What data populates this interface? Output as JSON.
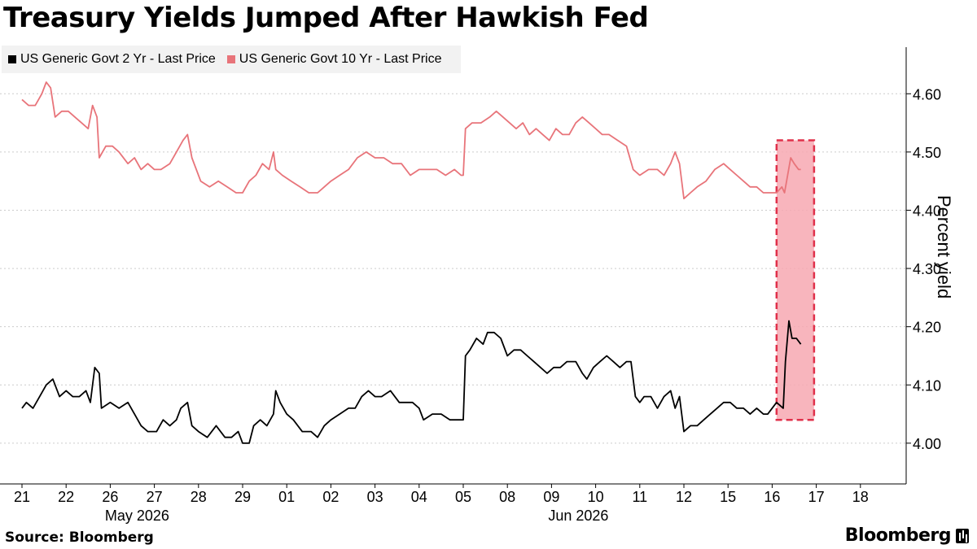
{
  "title": "Treasury Yields Jumped After Hawkish Fed",
  "source": "Source: Bloomberg",
  "brand": "Bloomberg",
  "colors": {
    "series_2yr": "#000000",
    "series_10yr": "#e8747a",
    "highlight_fill": "#f7a8b2",
    "highlight_border": "#e0304a",
    "gridline": "#cccccc",
    "legend_bg": "#f2f2f2"
  },
  "chart_data": {
    "type": "line",
    "title": "Treasury Yields Jumped After Hawkish Fed",
    "xlabel": "",
    "ylabel": "Percent yield",
    "ylim": [
      3.93,
      4.68
    ],
    "yticks": [
      "4.00",
      "4.10",
      "4.20",
      "4.30",
      "4.40",
      "4.50",
      "4.60"
    ],
    "grid": true,
    "legend_position": "top-left",
    "y_axis_side": "right",
    "categories": [
      "21",
      "22",
      "26",
      "27",
      "28",
      "29",
      "01",
      "02",
      "03",
      "04",
      "05",
      "08",
      "09",
      "10",
      "11",
      "12",
      "15",
      "16",
      "17",
      "18"
    ],
    "x_group_labels": [
      {
        "label": "May 2026",
        "at": "26"
      },
      {
        "label": "Jun 2026",
        "at": "09"
      }
    ],
    "series": [
      {
        "name": "US Generic Govt 2 Yr - Last Price",
        "points": [
          [
            0.0,
            4.06
          ],
          [
            0.1,
            4.07
          ],
          [
            0.25,
            4.06
          ],
          [
            0.4,
            4.08
          ],
          [
            0.55,
            4.1
          ],
          [
            0.7,
            4.11
          ],
          [
            0.85,
            4.08
          ],
          [
            1.0,
            4.09
          ],
          [
            1.15,
            4.08
          ],
          [
            1.3,
            4.08
          ],
          [
            1.45,
            4.09
          ],
          [
            1.55,
            4.07
          ],
          [
            1.65,
            4.13
          ],
          [
            1.75,
            4.12
          ],
          [
            1.8,
            4.06
          ],
          [
            2.0,
            4.07
          ],
          [
            2.2,
            4.06
          ],
          [
            2.4,
            4.07
          ],
          [
            2.55,
            4.05
          ],
          [
            2.7,
            4.03
          ],
          [
            2.85,
            4.02
          ],
          [
            3.05,
            4.02
          ],
          [
            3.2,
            4.04
          ],
          [
            3.35,
            4.03
          ],
          [
            3.5,
            4.04
          ],
          [
            3.6,
            4.06
          ],
          [
            3.75,
            4.07
          ],
          [
            3.85,
            4.03
          ],
          [
            4.0,
            4.02
          ],
          [
            4.2,
            4.01
          ],
          [
            4.4,
            4.03
          ],
          [
            4.6,
            4.01
          ],
          [
            4.75,
            4.01
          ],
          [
            4.9,
            4.02
          ],
          [
            5.0,
            4.0
          ],
          [
            5.15,
            4.0
          ],
          [
            5.25,
            4.03
          ],
          [
            5.4,
            4.04
          ],
          [
            5.55,
            4.03
          ],
          [
            5.7,
            4.05
          ],
          [
            5.75,
            4.09
          ],
          [
            5.85,
            4.07
          ],
          [
            6.0,
            4.05
          ],
          [
            6.15,
            4.04
          ],
          [
            6.35,
            4.02
          ],
          [
            6.55,
            4.02
          ],
          [
            6.7,
            4.01
          ],
          [
            6.85,
            4.03
          ],
          [
            7.0,
            4.04
          ],
          [
            7.2,
            4.05
          ],
          [
            7.4,
            4.06
          ],
          [
            7.55,
            4.06
          ],
          [
            7.7,
            4.08
          ],
          [
            7.85,
            4.09
          ],
          [
            8.0,
            4.08
          ],
          [
            8.15,
            4.08
          ],
          [
            8.35,
            4.09
          ],
          [
            8.55,
            4.07
          ],
          [
            8.7,
            4.07
          ],
          [
            8.85,
            4.07
          ],
          [
            9.0,
            4.06
          ],
          [
            9.1,
            4.04
          ],
          [
            9.3,
            4.05
          ],
          [
            9.5,
            4.05
          ],
          [
            9.7,
            4.04
          ],
          [
            9.85,
            4.04
          ],
          [
            10.0,
            4.04
          ],
          [
            10.05,
            4.15
          ],
          [
            10.15,
            4.16
          ],
          [
            10.3,
            4.18
          ],
          [
            10.45,
            4.17
          ],
          [
            10.55,
            4.19
          ],
          [
            10.7,
            4.19
          ],
          [
            10.85,
            4.18
          ],
          [
            11.0,
            4.15
          ],
          [
            11.15,
            4.16
          ],
          [
            11.3,
            4.16
          ],
          [
            11.45,
            4.15
          ],
          [
            11.6,
            4.14
          ],
          [
            11.75,
            4.13
          ],
          [
            11.9,
            4.12
          ],
          [
            12.05,
            4.13
          ],
          [
            12.2,
            4.13
          ],
          [
            12.35,
            4.14
          ],
          [
            12.55,
            4.14
          ],
          [
            12.7,
            4.12
          ],
          [
            12.8,
            4.11
          ],
          [
            12.95,
            4.13
          ],
          [
            13.1,
            4.14
          ],
          [
            13.25,
            4.15
          ],
          [
            13.4,
            4.14
          ],
          [
            13.55,
            4.13
          ],
          [
            13.7,
            4.14
          ],
          [
            13.8,
            4.14
          ],
          [
            13.9,
            4.08
          ],
          [
            14.0,
            4.07
          ],
          [
            14.1,
            4.08
          ],
          [
            14.25,
            4.08
          ],
          [
            14.4,
            4.06
          ],
          [
            14.55,
            4.08
          ],
          [
            14.7,
            4.09
          ],
          [
            14.8,
            4.06
          ],
          [
            14.9,
            4.08
          ],
          [
            15.0,
            4.02
          ],
          [
            15.15,
            4.03
          ],
          [
            15.3,
            4.03
          ],
          [
            15.45,
            4.04
          ],
          [
            15.6,
            4.05
          ],
          [
            15.75,
            4.06
          ],
          [
            15.9,
            4.07
          ],
          [
            16.05,
            4.07
          ],
          [
            16.2,
            4.06
          ],
          [
            16.35,
            4.06
          ],
          [
            16.5,
            4.05
          ],
          [
            16.65,
            4.06
          ],
          [
            16.8,
            4.05
          ],
          [
            16.9,
            4.05
          ],
          [
            17.0,
            4.06
          ],
          [
            17.1,
            4.07
          ],
          [
            17.25,
            4.06
          ],
          [
            17.3,
            4.14
          ],
          [
            17.38,
            4.21
          ],
          [
            17.45,
            4.18
          ],
          [
            17.55,
            4.18
          ],
          [
            17.65,
            4.17
          ]
        ]
      },
      {
        "name": "US Generic Govt 10 Yr - Last Price",
        "points": [
          [
            0.0,
            4.59
          ],
          [
            0.15,
            4.58
          ],
          [
            0.3,
            4.58
          ],
          [
            0.45,
            4.6
          ],
          [
            0.55,
            4.62
          ],
          [
            0.65,
            4.61
          ],
          [
            0.75,
            4.56
          ],
          [
            0.9,
            4.57
          ],
          [
            1.05,
            4.57
          ],
          [
            1.2,
            4.56
          ],
          [
            1.35,
            4.55
          ],
          [
            1.5,
            4.54
          ],
          [
            1.6,
            4.58
          ],
          [
            1.7,
            4.56
          ],
          [
            1.75,
            4.49
          ],
          [
            1.9,
            4.51
          ],
          [
            2.05,
            4.51
          ],
          [
            2.2,
            4.5
          ],
          [
            2.4,
            4.48
          ],
          [
            2.55,
            4.49
          ],
          [
            2.7,
            4.47
          ],
          [
            2.85,
            4.48
          ],
          [
            3.0,
            4.47
          ],
          [
            3.15,
            4.47
          ],
          [
            3.35,
            4.48
          ],
          [
            3.5,
            4.5
          ],
          [
            3.65,
            4.52
          ],
          [
            3.75,
            4.53
          ],
          [
            3.85,
            4.49
          ],
          [
            4.05,
            4.45
          ],
          [
            4.25,
            4.44
          ],
          [
            4.45,
            4.45
          ],
          [
            4.65,
            4.44
          ],
          [
            4.85,
            4.43
          ],
          [
            5.0,
            4.43
          ],
          [
            5.15,
            4.45
          ],
          [
            5.3,
            4.46
          ],
          [
            5.45,
            4.48
          ],
          [
            5.6,
            4.47
          ],
          [
            5.7,
            4.5
          ],
          [
            5.75,
            4.47
          ],
          [
            5.9,
            4.46
          ],
          [
            6.1,
            4.45
          ],
          [
            6.3,
            4.44
          ],
          [
            6.5,
            4.43
          ],
          [
            6.7,
            4.43
          ],
          [
            6.85,
            4.44
          ],
          [
            7.0,
            4.45
          ],
          [
            7.2,
            4.46
          ],
          [
            7.4,
            4.47
          ],
          [
            7.6,
            4.49
          ],
          [
            7.8,
            4.5
          ],
          [
            8.0,
            4.49
          ],
          [
            8.2,
            4.49
          ],
          [
            8.4,
            4.48
          ],
          [
            8.6,
            4.48
          ],
          [
            8.8,
            4.46
          ],
          [
            9.0,
            4.47
          ],
          [
            9.2,
            4.47
          ],
          [
            9.4,
            4.47
          ],
          [
            9.6,
            4.46
          ],
          [
            9.8,
            4.47
          ],
          [
            9.95,
            4.46
          ],
          [
            10.0,
            4.46
          ],
          [
            10.05,
            4.54
          ],
          [
            10.2,
            4.55
          ],
          [
            10.4,
            4.55
          ],
          [
            10.6,
            4.56
          ],
          [
            10.75,
            4.57
          ],
          [
            10.9,
            4.56
          ],
          [
            11.05,
            4.55
          ],
          [
            11.2,
            4.54
          ],
          [
            11.35,
            4.55
          ],
          [
            11.5,
            4.53
          ],
          [
            11.65,
            4.54
          ],
          [
            11.8,
            4.53
          ],
          [
            11.95,
            4.52
          ],
          [
            12.1,
            4.54
          ],
          [
            12.25,
            4.53
          ],
          [
            12.4,
            4.53
          ],
          [
            12.55,
            4.55
          ],
          [
            12.7,
            4.56
          ],
          [
            12.85,
            4.55
          ],
          [
            13.0,
            4.54
          ],
          [
            13.15,
            4.53
          ],
          [
            13.3,
            4.53
          ],
          [
            13.5,
            4.52
          ],
          [
            13.7,
            4.51
          ],
          [
            13.85,
            4.47
          ],
          [
            14.0,
            4.46
          ],
          [
            14.2,
            4.47
          ],
          [
            14.4,
            4.47
          ],
          [
            14.55,
            4.46
          ],
          [
            14.7,
            4.48
          ],
          [
            14.8,
            4.5
          ],
          [
            14.9,
            4.48
          ],
          [
            15.0,
            4.42
          ],
          [
            15.15,
            4.43
          ],
          [
            15.3,
            4.44
          ],
          [
            15.5,
            4.45
          ],
          [
            15.7,
            4.47
          ],
          [
            15.9,
            4.48
          ],
          [
            16.05,
            4.47
          ],
          [
            16.2,
            4.46
          ],
          [
            16.35,
            4.45
          ],
          [
            16.5,
            4.44
          ],
          [
            16.65,
            4.44
          ],
          [
            16.8,
            4.43
          ],
          [
            16.95,
            4.43
          ],
          [
            17.1,
            4.43
          ],
          [
            17.22,
            4.44
          ],
          [
            17.28,
            4.43
          ],
          [
            17.35,
            4.46
          ],
          [
            17.42,
            4.49
          ],
          [
            17.5,
            4.48
          ],
          [
            17.6,
            4.47
          ],
          [
            17.65,
            4.47
          ]
        ]
      }
    ],
    "highlight": {
      "x_from": 17.1,
      "x_to": 17.95,
      "y_from": 4.04,
      "y_to": 4.52
    }
  }
}
